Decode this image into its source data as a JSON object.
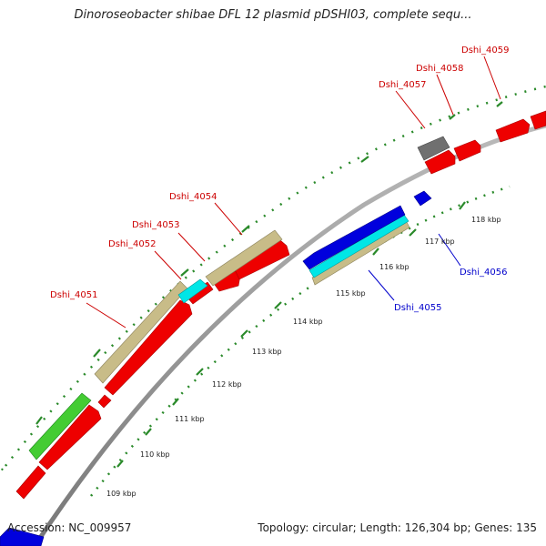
{
  "title": "Dinoroseobacter shibae DFL 12 plasmid pDSHI03, complete sequ...",
  "accession": "Accession: NC_009957",
  "summary": "Topology: circular; Length: 126,304 bp; Genes: 135",
  "ticks": [
    "109 kbp",
    "110 kbp",
    "111 kbp",
    "112 kbp",
    "113 kbp",
    "114 kbp",
    "115 kbp",
    "116 kbp",
    "117 kbp",
    "118 kbp"
  ],
  "gene_labels": [
    {
      "id": "dshi-4051",
      "text": "Dshi_4051",
      "color": "#cc0000"
    },
    {
      "id": "dshi-4052",
      "text": "Dshi_4052",
      "color": "#cc0000"
    },
    {
      "id": "dshi-4053",
      "text": "Dshi_4053",
      "color": "#cc0000"
    },
    {
      "id": "dshi-4054",
      "text": "Dshi_4054",
      "color": "#cc0000"
    },
    {
      "id": "dshi-4055",
      "text": "Dshi_4055",
      "color": "#0000cc"
    },
    {
      "id": "dshi-4056",
      "text": "Dshi_4056",
      "color": "#0000cc"
    },
    {
      "id": "dshi-4057",
      "text": "Dshi_4057",
      "color": "#cc0000"
    },
    {
      "id": "dshi-4058",
      "text": "Dshi_4058",
      "color": "#cc0000"
    },
    {
      "id": "dshi-4059",
      "text": "Dshi_4059",
      "color": "#cc0000"
    }
  ],
  "colors": {
    "forward_cds": "#ee0000",
    "reverse_cds": "#0000dd",
    "cds_outline": "#c8bc88",
    "rna": "#00e6e6",
    "misc": "#44cc33",
    "pseudo": "#707070",
    "backbone": "#999999",
    "tick": "#2a8a2a"
  }
}
